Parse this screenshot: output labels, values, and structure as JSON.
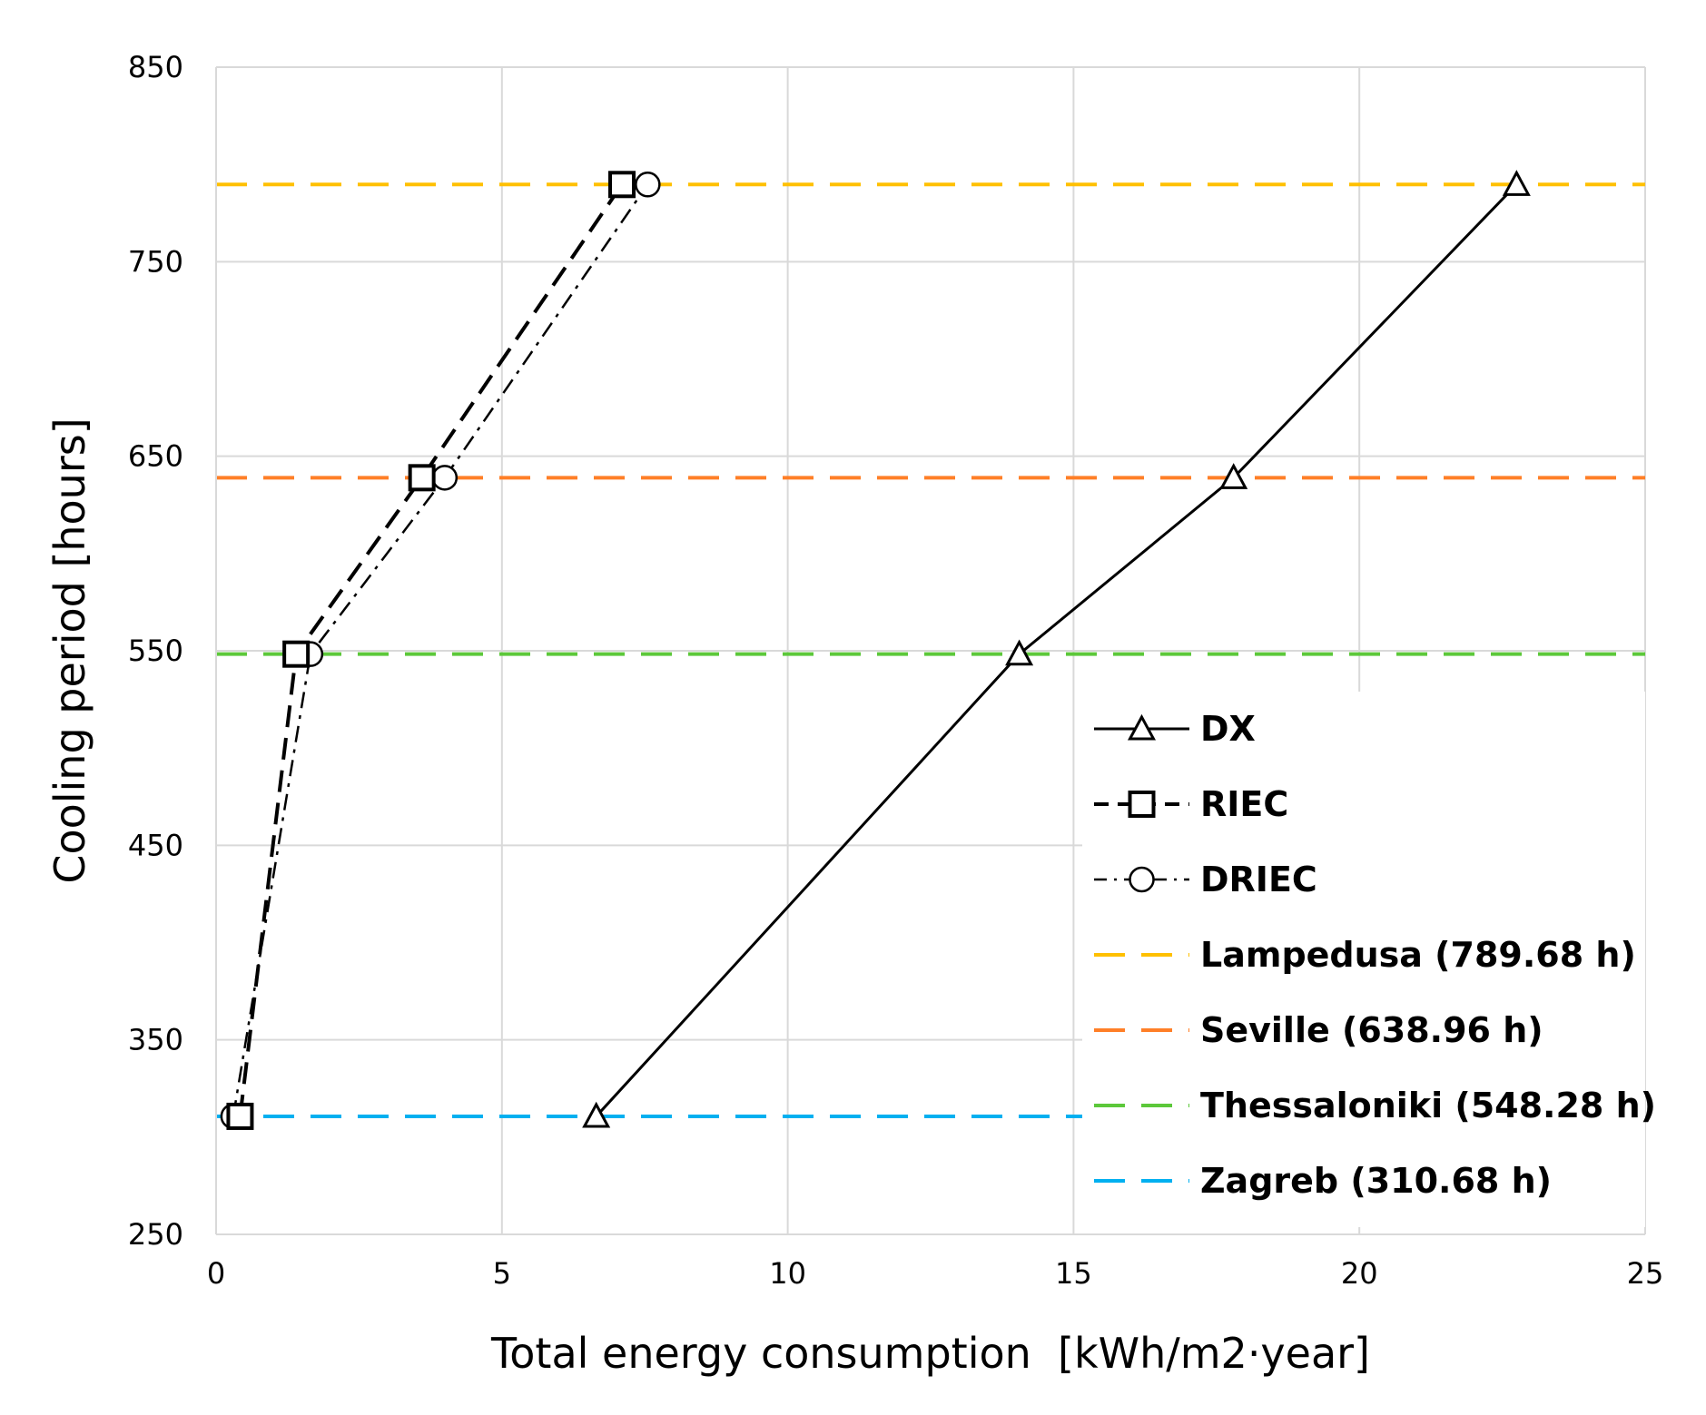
{
  "chart_data": {
    "type": "line",
    "title": "",
    "xlabel": "Total energy consumption  [kWh/m2·year]",
    "ylabel": "Cooling period [hours]",
    "xlim": [
      0,
      25
    ],
    "ylim": [
      250,
      850
    ],
    "xticks": [
      0,
      5,
      10,
      15,
      20,
      25
    ],
    "yticks": [
      250,
      350,
      450,
      550,
      650,
      750,
      850
    ],
    "grid": true,
    "legend_position": "lower-right",
    "series": [
      {
        "name": "DX",
        "style": "solid",
        "marker": "triangle",
        "color": "#000000",
        "points": [
          [
            6.65,
            310.68
          ],
          [
            14.05,
            548.28
          ],
          [
            17.8,
            638.96
          ],
          [
            22.75,
            789.68
          ]
        ]
      },
      {
        "name": "RIEC",
        "style": "dash",
        "marker": "square",
        "color": "#000000",
        "points": [
          [
            0.42,
            310.68
          ],
          [
            1.4,
            548.28
          ],
          [
            3.6,
            638.96
          ],
          [
            7.1,
            789.68
          ]
        ]
      },
      {
        "name": "DRIEC",
        "style": "dash-dot",
        "marker": "circle",
        "color": "#000000",
        "points": [
          [
            0.3,
            310.68
          ],
          [
            1.65,
            548.28
          ],
          [
            4.0,
            638.96
          ],
          [
            7.55,
            789.68
          ]
        ]
      }
    ],
    "reference_lines": [
      {
        "name": "Lampedusa (789.68 h)",
        "y": 789.68,
        "color": "#ffc000"
      },
      {
        "name": "Seville (638.96 h)",
        "y": 638.96,
        "color": "#ff7f27"
      },
      {
        "name": "Thessaloniki (548.28 h)",
        "y": 548.28,
        "color": "#5cc83a"
      },
      {
        "name": "Zagreb (310.68 h)",
        "y": 310.68,
        "color": "#00b0f0"
      }
    ]
  }
}
